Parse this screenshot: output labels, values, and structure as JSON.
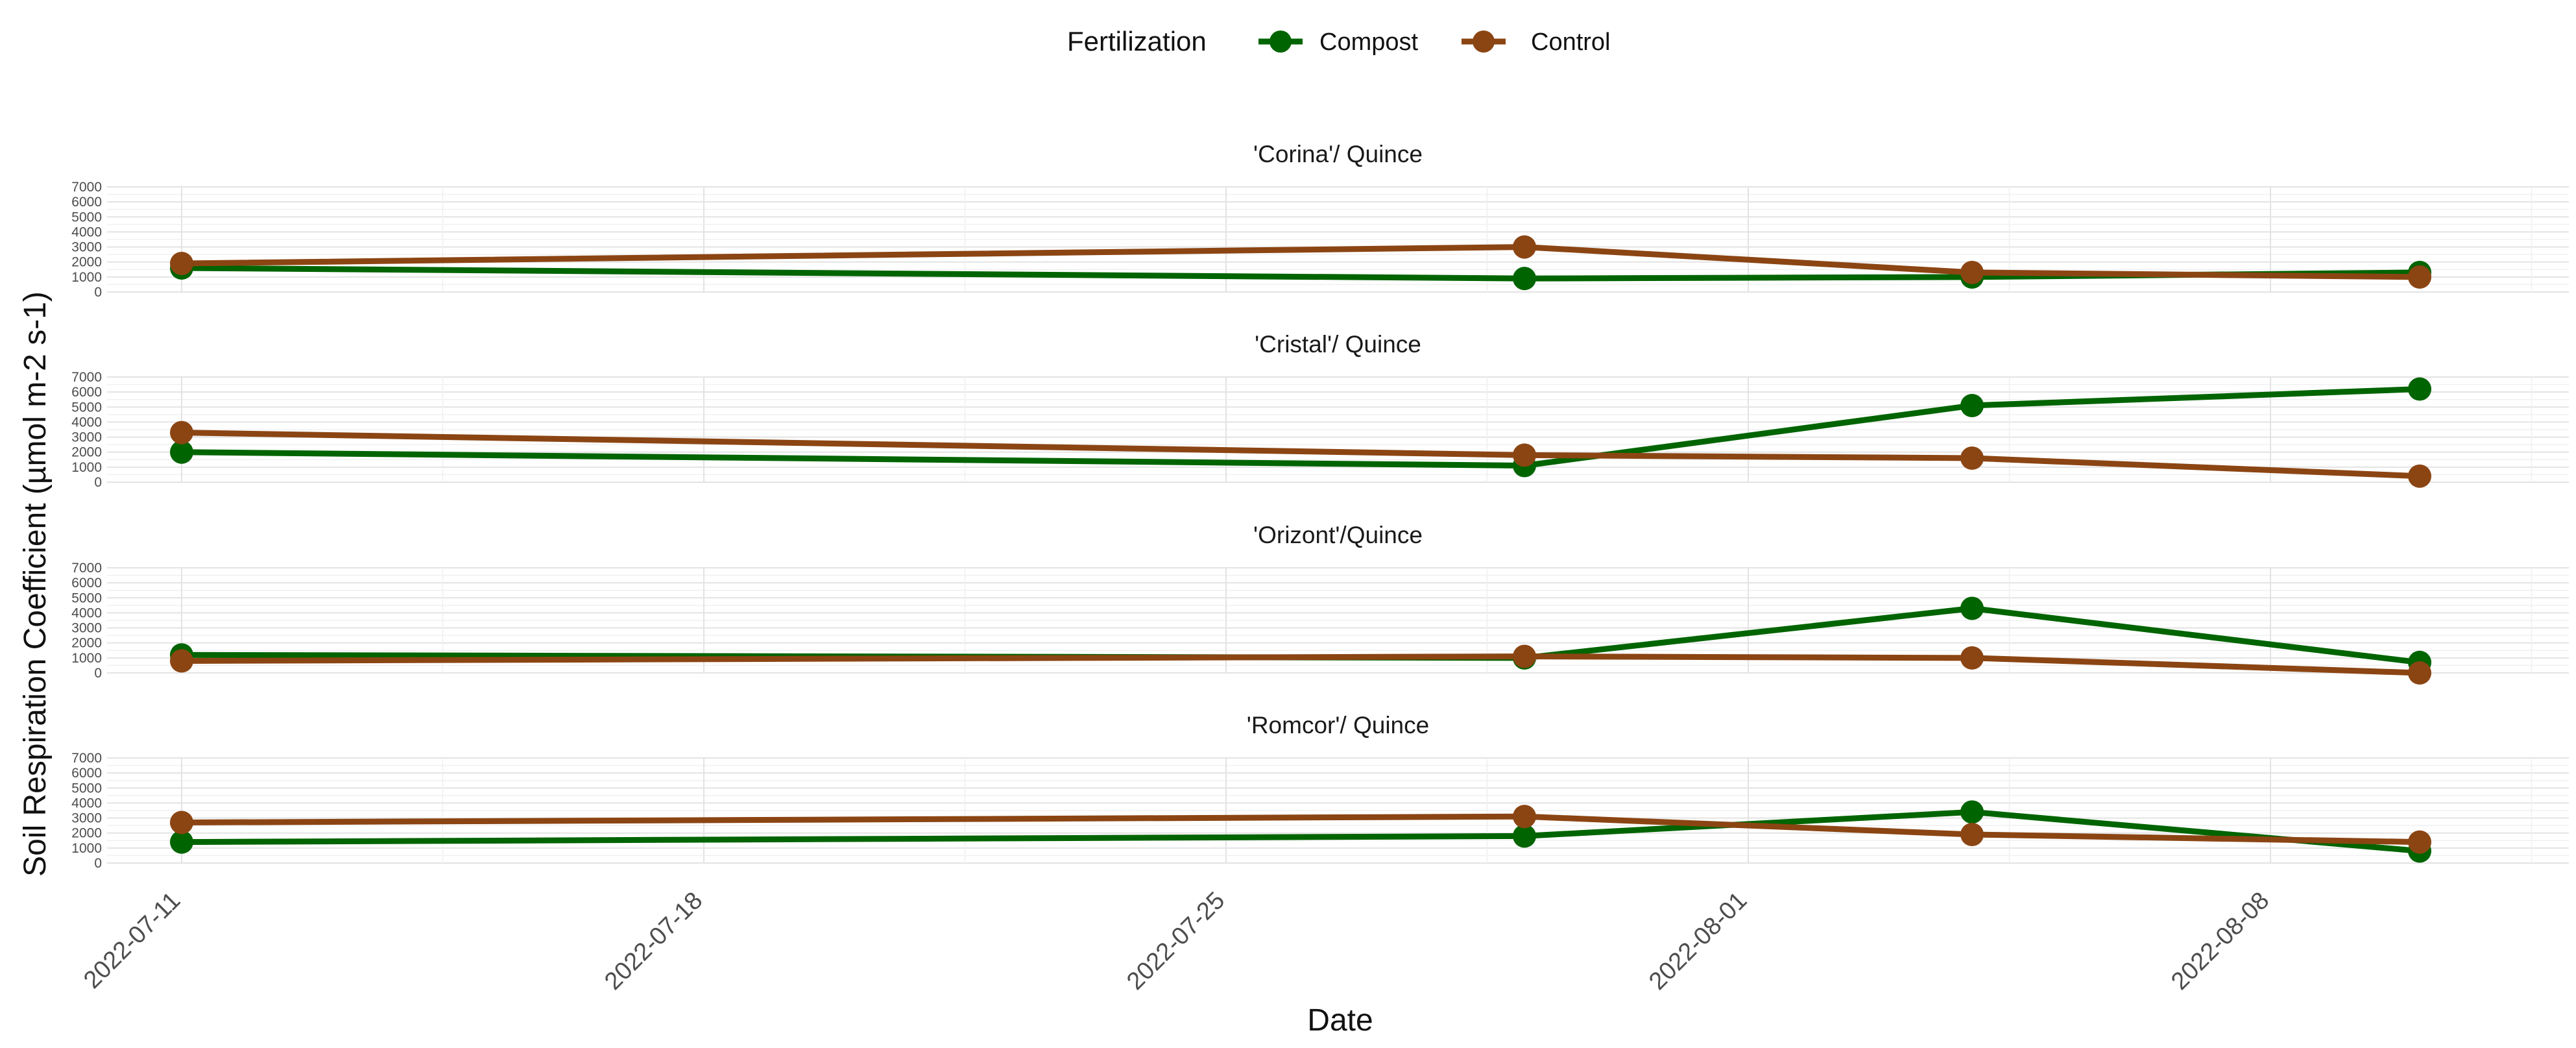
{
  "chart_data": {
    "type": "line",
    "legend": {
      "title": "Fertilization",
      "position": "top"
    },
    "series": [
      {
        "name": "Compost",
        "color": "#006400"
      },
      {
        "name": "Control",
        "color": "#8B4513"
      }
    ],
    "x": [
      "2022-07-11",
      "2022-07-29",
      "2022-08-04",
      "2022-08-10"
    ],
    "xlim": [
      "2022-07-10",
      "2022-08-12"
    ],
    "x_ticks": [
      "2022-07-11",
      "2022-07-18",
      "2022-07-25",
      "2022-08-01",
      "2022-08-08"
    ],
    "xlabel": "Date",
    "ylabel": "Soil Respiration Coefficient (µmol m-2 s-1)",
    "ylim": [
      0,
      7000
    ],
    "y_ticks": [
      "0",
      "1000",
      "2000",
      "3000",
      "4000",
      "5000",
      "6000",
      "7000"
    ],
    "panels": [
      {
        "title": "'Corina'/ Quince",
        "values": {
          "Compost": [
            1600,
            900,
            1000,
            1300
          ],
          "Control": [
            1900,
            3000,
            1300,
            1000
          ]
        }
      },
      {
        "title": "'Cristal'/ Quince",
        "values": {
          "Compost": [
            2000,
            1100,
            5100,
            6200
          ],
          "Control": [
            3300,
            1800,
            1600,
            400
          ]
        }
      },
      {
        "title": "'Orizont'/Quince",
        "values": {
          "Compost": [
            1200,
            1000,
            4300,
            700
          ],
          "Control": [
            800,
            1100,
            1000,
            0
          ]
        }
      },
      {
        "title": "'Romcor'/ Quince",
        "values": {
          "Compost": [
            1400,
            1800,
            3400,
            800
          ],
          "Control": [
            2700,
            3100,
            1900,
            1400
          ]
        }
      }
    ]
  }
}
